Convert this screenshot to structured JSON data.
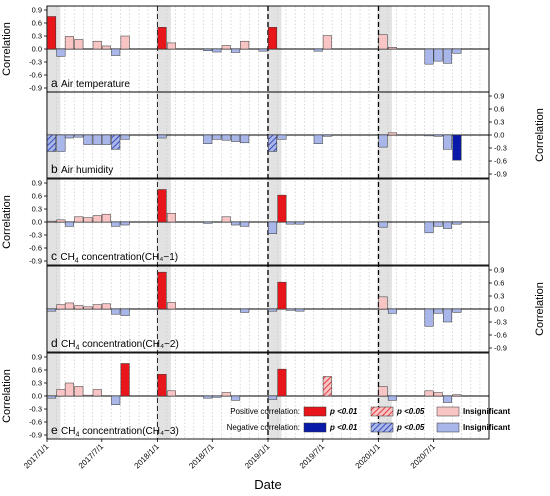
{
  "figure": {
    "x_axis_label": "Date",
    "x_ticks": [
      "2017/1/1",
      "2017/7/1",
      "2018/1/1",
      "2018/7/1",
      "2019/1/1",
      "2019/7/1",
      "2020/1/1",
      "2020/7/1"
    ],
    "dashed_year_lines": [
      "2018/1/1",
      "2019/1/1",
      "2020/1/1"
    ],
    "shaded_months": [
      "2017/1",
      "2018/1",
      "2019/1",
      "2020/1"
    ]
  },
  "legend": {
    "positive_label": "Positive correlation:",
    "negative_label": "Negative correlation:",
    "p001": "p <0.01",
    "p005": "p <0.05",
    "insig": "Insignificant",
    "colors": {
      "pos_strong": "#e8161b",
      "pos_weak": "#ef8a8a",
      "pos_insig": "#f8c4c4",
      "neg_strong": "#0a1aa8",
      "neg_weak": "#4a6bd6",
      "neg_insig": "#a8b6ea"
    }
  },
  "chart_data": [
    {
      "type": "bar",
      "panel_letter": "a",
      "label_main": "Air temperature",
      "label_sub": "",
      "label_tail": "",
      "ylabel": "Correlation",
      "axis_side": "left",
      "ylim": [
        -0.9,
        0.9
      ],
      "yticks": [
        "0.9",
        "0.6",
        "0.3",
        "0.0",
        "-0.3",
        "-0.6",
        "-0.9"
      ],
      "bars": [
        {
          "month": "2017/1",
          "value": 0.75,
          "sig": "p001"
        },
        {
          "month": "2017/2",
          "value": -0.17,
          "sig": "insig"
        },
        {
          "month": "2017/3",
          "value": 0.29,
          "sig": "insig"
        },
        {
          "month": "2017/4",
          "value": 0.22,
          "sig": "insig"
        },
        {
          "month": "2017/6",
          "value": 0.18,
          "sig": "insig"
        },
        {
          "month": "2017/7",
          "value": 0.07,
          "sig": "insig"
        },
        {
          "month": "2017/8",
          "value": -0.15,
          "sig": "insig"
        },
        {
          "month": "2017/9",
          "value": 0.3,
          "sig": "insig"
        },
        {
          "month": "2018/1",
          "value": 0.5,
          "sig": "p001"
        },
        {
          "month": "2018/2",
          "value": 0.14,
          "sig": "insig"
        },
        {
          "month": "2018/6",
          "value": -0.04,
          "sig": "insig"
        },
        {
          "month": "2018/7",
          "value": -0.07,
          "sig": "insig"
        },
        {
          "month": "2018/8",
          "value": 0.08,
          "sig": "insig"
        },
        {
          "month": "2018/9",
          "value": -0.08,
          "sig": "insig"
        },
        {
          "month": "2018/10",
          "value": 0.18,
          "sig": "insig"
        },
        {
          "month": "2018/12",
          "value": -0.05,
          "sig": "insig"
        },
        {
          "month": "2019/1",
          "value": 0.5,
          "sig": "p001"
        },
        {
          "month": "2019/6",
          "value": -0.05,
          "sig": "insig"
        },
        {
          "month": "2019/7",
          "value": 0.31,
          "sig": "insig"
        },
        {
          "month": "2020/1",
          "value": 0.33,
          "sig": "insig"
        },
        {
          "month": "2020/2",
          "value": 0.04,
          "sig": "insig"
        },
        {
          "month": "2020/6",
          "value": -0.35,
          "sig": "insig"
        },
        {
          "month": "2020/7",
          "value": -0.28,
          "sig": "insig"
        },
        {
          "month": "2020/8",
          "value": -0.33,
          "sig": "insig"
        },
        {
          "month": "2020/9",
          "value": -0.1,
          "sig": "insig"
        }
      ]
    },
    {
      "type": "bar",
      "panel_letter": "b",
      "label_main": "Air humidity",
      "label_sub": "",
      "label_tail": "",
      "ylabel": "Correlation",
      "axis_side": "right",
      "ylim": [
        -0.9,
        0.9
      ],
      "yticks": [
        "0.9",
        "0.6",
        "0.3",
        "0.0",
        "-0.3",
        "-0.6",
        "-0.9"
      ],
      "bars": [
        {
          "month": "2017/1",
          "value": -0.38,
          "sig": "p005"
        },
        {
          "month": "2017/2",
          "value": -0.38,
          "sig": "insig"
        },
        {
          "month": "2017/3",
          "value": -0.07,
          "sig": "insig"
        },
        {
          "month": "2017/4",
          "value": -0.05,
          "sig": "insig"
        },
        {
          "month": "2017/5",
          "value": -0.22,
          "sig": "insig"
        },
        {
          "month": "2017/6",
          "value": -0.22,
          "sig": "insig"
        },
        {
          "month": "2017/7",
          "value": -0.22,
          "sig": "insig"
        },
        {
          "month": "2017/8",
          "value": -0.33,
          "sig": "p005"
        },
        {
          "month": "2017/9",
          "value": -0.1,
          "sig": "insig"
        },
        {
          "month": "2018/1",
          "value": -0.07,
          "sig": "insig"
        },
        {
          "month": "2018/6",
          "value": -0.2,
          "sig": "insig"
        },
        {
          "month": "2018/7",
          "value": -0.1,
          "sig": "insig"
        },
        {
          "month": "2018/8",
          "value": -0.12,
          "sig": "insig"
        },
        {
          "month": "2018/9",
          "value": -0.15,
          "sig": "insig"
        },
        {
          "month": "2018/10",
          "value": -0.18,
          "sig": "insig"
        },
        {
          "month": "2019/1",
          "value": -0.38,
          "sig": "p005"
        },
        {
          "month": "2019/2",
          "value": -0.1,
          "sig": "insig"
        },
        {
          "month": "2019/6",
          "value": -0.2,
          "sig": "insig"
        },
        {
          "month": "2019/7",
          "value": -0.03,
          "sig": "insig"
        },
        {
          "month": "2020/1",
          "value": -0.28,
          "sig": "insig"
        },
        {
          "month": "2020/2",
          "value": 0.05,
          "sig": "insig"
        },
        {
          "month": "2020/6",
          "value": -0.02,
          "sig": "insig"
        },
        {
          "month": "2020/7",
          "value": -0.03,
          "sig": "insig"
        },
        {
          "month": "2020/8",
          "value": -0.33,
          "sig": "insig"
        },
        {
          "month": "2020/9",
          "value": -0.58,
          "sig": "p001"
        }
      ]
    },
    {
      "type": "bar",
      "panel_letter": "c",
      "label_main": "CH",
      "label_sub": "4",
      "label_tail": " concentration(CH₄−1)",
      "ylabel": "Correlation",
      "axis_side": "left",
      "ylim": [
        -0.9,
        0.9
      ],
      "yticks": [
        "0.9",
        "0.6",
        "0.3",
        "0.0",
        "-0.3",
        "-0.6",
        "-0.9"
      ],
      "bars": [
        {
          "month": "2017/1",
          "value": 0.02,
          "sig": "insig"
        },
        {
          "month": "2017/2",
          "value": 0.05,
          "sig": "insig"
        },
        {
          "month": "2017/3",
          "value": -0.1,
          "sig": "insig"
        },
        {
          "month": "2017/4",
          "value": 0.12,
          "sig": "insig"
        },
        {
          "month": "2017/5",
          "value": 0.1,
          "sig": "insig"
        },
        {
          "month": "2017/6",
          "value": 0.15,
          "sig": "insig"
        },
        {
          "month": "2017/7",
          "value": 0.18,
          "sig": "insig"
        },
        {
          "month": "2017/8",
          "value": -0.1,
          "sig": "insig"
        },
        {
          "month": "2017/9",
          "value": -0.07,
          "sig": "insig"
        },
        {
          "month": "2018/1",
          "value": 0.75,
          "sig": "p001"
        },
        {
          "month": "2018/2",
          "value": 0.2,
          "sig": "insig"
        },
        {
          "month": "2018/6",
          "value": -0.03,
          "sig": "insig"
        },
        {
          "month": "2018/8",
          "value": 0.12,
          "sig": "insig"
        },
        {
          "month": "2018/9",
          "value": -0.07,
          "sig": "insig"
        },
        {
          "month": "2018/10",
          "value": -0.1,
          "sig": "insig"
        },
        {
          "month": "2019/1",
          "value": -0.27,
          "sig": "insig"
        },
        {
          "month": "2019/2",
          "value": 0.62,
          "sig": "p001"
        },
        {
          "month": "2019/3",
          "value": -0.05,
          "sig": "insig"
        },
        {
          "month": "2019/4",
          "value": -0.05,
          "sig": "insig"
        },
        {
          "month": "2020/1",
          "value": -0.12,
          "sig": "insig"
        },
        {
          "month": "2020/6",
          "value": -0.25,
          "sig": "insig"
        },
        {
          "month": "2020/7",
          "value": -0.1,
          "sig": "insig"
        },
        {
          "month": "2020/8",
          "value": -0.15,
          "sig": "insig"
        },
        {
          "month": "2020/9",
          "value": -0.05,
          "sig": "insig"
        }
      ]
    },
    {
      "type": "bar",
      "panel_letter": "d",
      "label_main": "CH",
      "label_sub": "4",
      "label_tail": " concentration(CH₄−2)",
      "ylabel": "Correlation",
      "axis_side": "right",
      "ylim": [
        -0.9,
        0.9
      ],
      "yticks": [
        "0.9",
        "0.6",
        "0.3",
        "0.0",
        "-0.3",
        "-0.6",
        "-0.9"
      ],
      "bars": [
        {
          "month": "2017/1",
          "value": -0.05,
          "sig": "insig"
        },
        {
          "month": "2017/2",
          "value": 0.1,
          "sig": "insig"
        },
        {
          "month": "2017/3",
          "value": 0.14,
          "sig": "insig"
        },
        {
          "month": "2017/4",
          "value": 0.08,
          "sig": "insig"
        },
        {
          "month": "2017/5",
          "value": 0.05,
          "sig": "insig"
        },
        {
          "month": "2017/6",
          "value": 0.1,
          "sig": "insig"
        },
        {
          "month": "2017/7",
          "value": 0.12,
          "sig": "insig"
        },
        {
          "month": "2017/8",
          "value": -0.12,
          "sig": "insig"
        },
        {
          "month": "2017/9",
          "value": -0.15,
          "sig": "insig"
        },
        {
          "month": "2018/1",
          "value": 0.85,
          "sig": "p001"
        },
        {
          "month": "2018/2",
          "value": 0.15,
          "sig": "insig"
        },
        {
          "month": "2018/10",
          "value": -0.08,
          "sig": "insig"
        },
        {
          "month": "2019/1",
          "value": -0.05,
          "sig": "insig"
        },
        {
          "month": "2019/2",
          "value": 0.62,
          "sig": "p001"
        },
        {
          "month": "2019/3",
          "value": -0.03,
          "sig": "insig"
        },
        {
          "month": "2019/4",
          "value": -0.05,
          "sig": "insig"
        },
        {
          "month": "2020/1",
          "value": 0.28,
          "sig": "insig"
        },
        {
          "month": "2020/2",
          "value": -0.1,
          "sig": "insig"
        },
        {
          "month": "2020/6",
          "value": -0.4,
          "sig": "insig"
        },
        {
          "month": "2020/7",
          "value": -0.1,
          "sig": "insig"
        },
        {
          "month": "2020/8",
          "value": -0.3,
          "sig": "insig"
        },
        {
          "month": "2020/9",
          "value": -0.08,
          "sig": "insig"
        }
      ]
    },
    {
      "type": "bar",
      "panel_letter": "e",
      "label_main": "CH",
      "label_sub": "4",
      "label_tail": " concentration(CH₄−3)",
      "ylabel": "Correlation",
      "axis_side": "left",
      "ylim": [
        -0.9,
        0.9
      ],
      "yticks": [
        "0.9",
        "0.6",
        "0.3",
        "0.0",
        "-0.3",
        "-0.6",
        "-0.9"
      ],
      "bars": [
        {
          "month": "2017/1",
          "value": -0.05,
          "sig": "insig"
        },
        {
          "month": "2017/2",
          "value": 0.15,
          "sig": "insig"
        },
        {
          "month": "2017/3",
          "value": 0.3,
          "sig": "insig"
        },
        {
          "month": "2017/4",
          "value": 0.22,
          "sig": "insig"
        },
        {
          "month": "2017/5",
          "value": 0.02,
          "sig": "insig"
        },
        {
          "month": "2017/6",
          "value": 0.15,
          "sig": "insig"
        },
        {
          "month": "2017/8",
          "value": -0.2,
          "sig": "insig"
        },
        {
          "month": "2017/9",
          "value": 0.75,
          "sig": "p001"
        },
        {
          "month": "2018/1",
          "value": 0.5,
          "sig": "p001"
        },
        {
          "month": "2018/2",
          "value": 0.12,
          "sig": "insig"
        },
        {
          "month": "2018/6",
          "value": -0.05,
          "sig": "insig"
        },
        {
          "month": "2018/7",
          "value": -0.03,
          "sig": "insig"
        },
        {
          "month": "2018/8",
          "value": 0.08,
          "sig": "insig"
        },
        {
          "month": "2018/9",
          "value": -0.1,
          "sig": "insig"
        },
        {
          "month": "2019/1",
          "value": -0.08,
          "sig": "insig"
        },
        {
          "month": "2019/2",
          "value": 0.62,
          "sig": "p001"
        },
        {
          "month": "2019/7",
          "value": 0.45,
          "sig": "p005"
        },
        {
          "month": "2020/1",
          "value": 0.22,
          "sig": "insig"
        },
        {
          "month": "2020/2",
          "value": -0.1,
          "sig": "insig"
        },
        {
          "month": "2020/6",
          "value": 0.12,
          "sig": "insig"
        },
        {
          "month": "2020/7",
          "value": 0.08,
          "sig": "insig"
        },
        {
          "month": "2020/8",
          "value": -0.15,
          "sig": "insig"
        },
        {
          "month": "2020/9",
          "value": 0.03,
          "sig": "insig"
        }
      ]
    }
  ]
}
